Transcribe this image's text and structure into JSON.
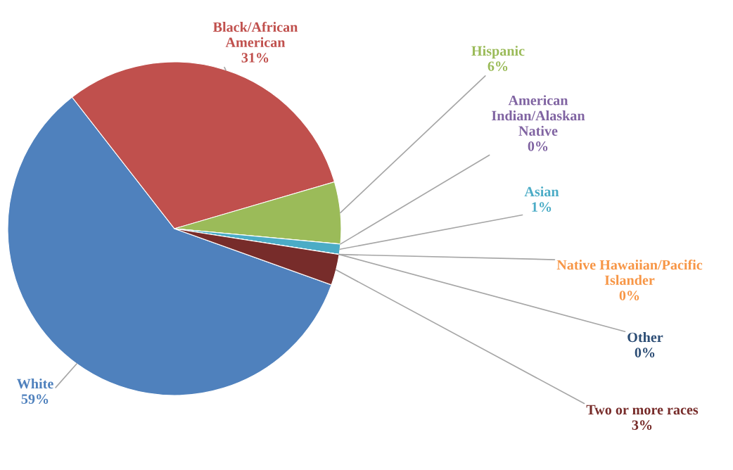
{
  "chart_data": {
    "type": "pie",
    "categories": [
      "White",
      "Black/African\nAmerican",
      "Hispanic",
      "American\nIndian/Alaskan\nNative",
      "Asian",
      "Native Hawaiian/Pacific\nIslander",
      "Other",
      "Two or more races"
    ],
    "values": [
      59,
      31,
      6,
      0,
      1,
      0,
      0,
      3
    ],
    "value_labels": [
      "59%",
      "31%",
      "6%",
      "0%",
      "1%",
      "0%",
      "0%",
      "3%"
    ],
    "colors": [
      "#4f81bd",
      "#c0504d",
      "#9bbb59",
      "#8064a2",
      "#4bacc6",
      "#f79646",
      "#2c4d75",
      "#772c2a"
    ],
    "legend": false
  }
}
